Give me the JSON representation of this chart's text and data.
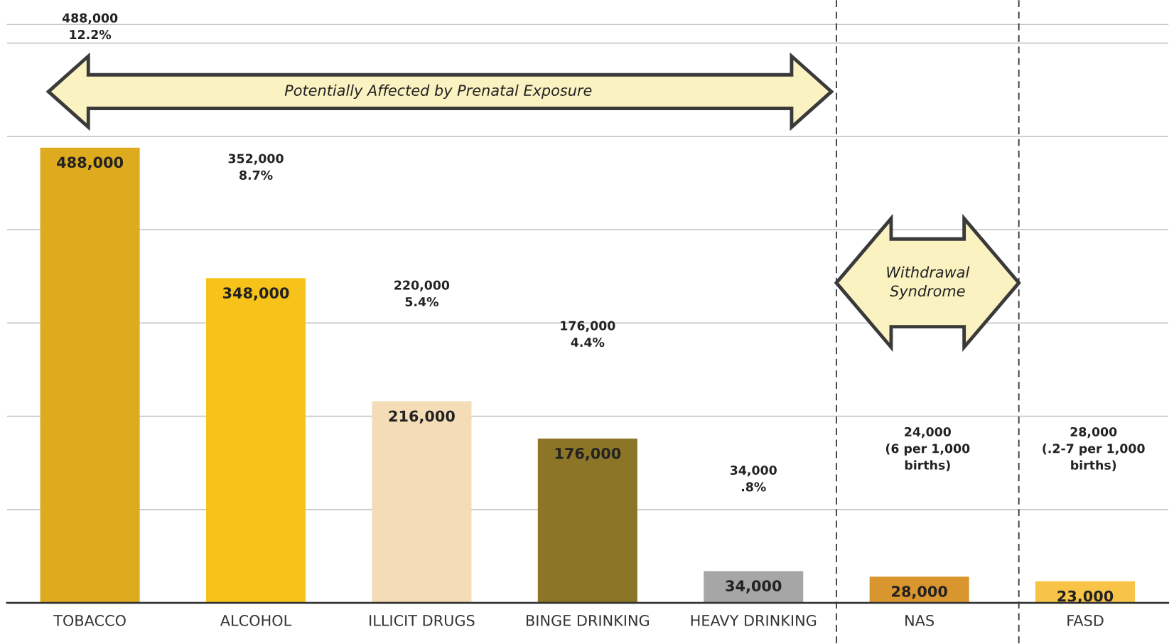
{
  "chart_data": {
    "type": "bar",
    "categories": [
      "TOBACCO",
      "ALCOHOL",
      "ILLICIT DRUGS",
      "BINGE DRINKING",
      "HEAVY DRINKING",
      "NAS",
      "FASD"
    ],
    "values": [
      488000,
      348000,
      216000,
      176000,
      34000,
      28000,
      23000
    ],
    "colors": [
      "#deaa1e",
      "#f7c21a",
      "#f3dcb6",
      "#8c7526",
      "#a6a6a6",
      "#d9952e",
      "#f7c447"
    ],
    "value_labels": [
      "488,000",
      "348,000",
      "216,000",
      "176,000",
      "34,000",
      "28,000",
      "23,000"
    ],
    "ylim": [
      0,
      620000
    ],
    "yticks": [
      {
        "value": 0,
        "label": null
      },
      {
        "value": 100000,
        "label": null
      },
      {
        "value": 200000,
        "label": null
      },
      {
        "value": 300000,
        "label": null
      },
      {
        "value": 400000,
        "label": null
      },
      {
        "value": 500000,
        "label": null
      },
      {
        "value": 600000,
        "label": null
      }
    ],
    "tick_labels": "x",
    "grid": "y",
    "annotations": [
      "488,000\n12.2%",
      "352,000\n8.7%",
      "220,000\n5.4%",
      "176,000\n4.4%",
      "34,000\n.8%",
      "24,000\n(6 per 1,000\nbirths)",
      "28,000\n(.2-7 per 1,000\nbirths)",
      "Potentially Affected by Prenatal Exposure",
      "Withdrawal\nSyndrome"
    ]
  }
}
